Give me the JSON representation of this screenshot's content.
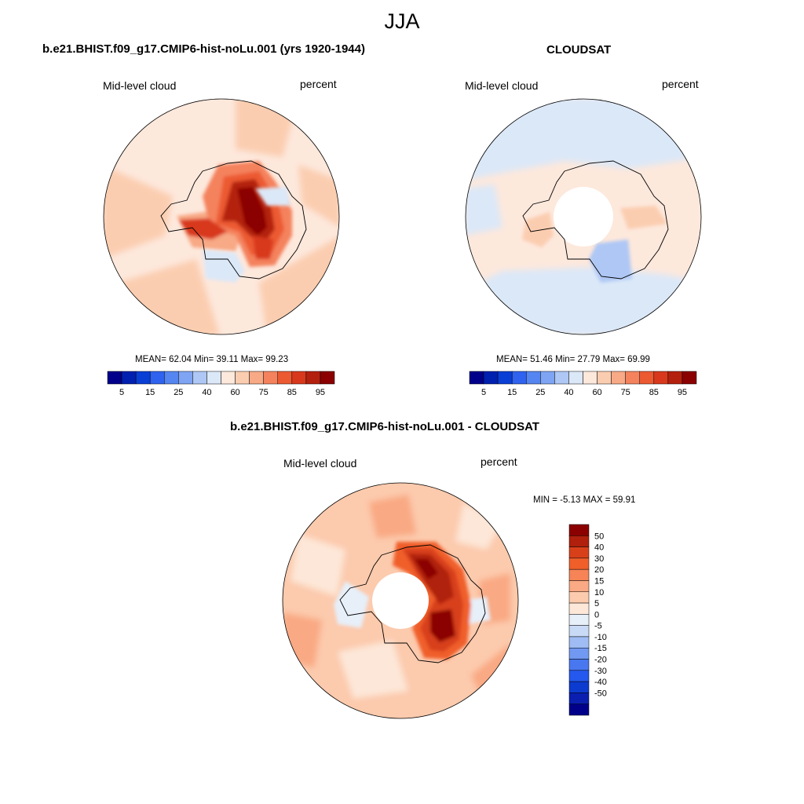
{
  "season": "JJA",
  "units": "percent",
  "variable": "Mid-level cloud",
  "panels": [
    {
      "title": "b.e21.BHIST.f09_g17.CMIP6-hist-noLu.001 (yrs 1920-1944)",
      "stats": "MEAN=  62.04  Min=  39.11  Max=  99.23"
    },
    {
      "title": "CLOUDSAT",
      "stats": "MEAN=  51.46  Min=  27.79  Max=  69.99"
    },
    {
      "title": "b.e21.BHIST.f09_g17.CMIP6-hist-noLu.001 - CLOUDSAT",
      "stats": "MIN =  -5.13 MAX =  59.91"
    }
  ],
  "colorbar_main": {
    "colors": [
      "#00008b",
      "#0020b0",
      "#0a3fd6",
      "#2f62ee",
      "#5585f0",
      "#7ea4f3",
      "#aec7f5",
      "#dbe8f8",
      "#fde8dc",
      "#fbcdb0",
      "#f8a985",
      "#f4825d",
      "#ec5a32",
      "#d8391c",
      "#b4200e",
      "#8b0000"
    ],
    "labels": [
      "5",
      "15",
      "25",
      "40",
      "60",
      "75",
      "85",
      "95"
    ]
  },
  "colorbar_diff": {
    "colors": [
      "#00008b",
      "#0a1fb0",
      "#0c3bd0",
      "#2458ee",
      "#4877f0",
      "#7199f2",
      "#9fbcf4",
      "#c9daf6",
      "#e7eff9",
      "#fde7d8",
      "#fccaad",
      "#f9a983",
      "#f68456",
      "#f05f2a",
      "#d8401a",
      "#b0200c",
      "#8b0000"
    ],
    "labels": [
      "50",
      "40",
      "30",
      "20",
      "15",
      "10",
      "5",
      "0",
      "-5",
      "-10",
      "-15",
      "-20",
      "-30",
      "-40",
      "-50"
    ]
  },
  "chart_data": [
    {
      "type": "heatmap",
      "title": "b.e21.BHIST.f09_g17.CMIP6-hist-noLu.001 (yrs 1920-1944)",
      "variable": "Mid-level cloud",
      "units": "percent",
      "projection": "south-polar-stereographic",
      "mean": 62.04,
      "min": 39.11,
      "max": 99.23,
      "levels": [
        5,
        10,
        15,
        20,
        25,
        30,
        40,
        50,
        60,
        70,
        75,
        80,
        85,
        90,
        95
      ]
    },
    {
      "type": "heatmap",
      "title": "CLOUDSAT",
      "variable": "Mid-level cloud",
      "units": "percent",
      "projection": "south-polar-stereographic",
      "mean": 51.46,
      "min": 27.79,
      "max": 69.99,
      "levels": [
        5,
        10,
        15,
        20,
        25,
        30,
        40,
        50,
        60,
        70,
        75,
        80,
        85,
        90,
        95
      ]
    },
    {
      "type": "heatmap",
      "title": "b.e21.BHIST.f09_g17.CMIP6-hist-noLu.001 - CLOUDSAT",
      "variable": "Mid-level cloud",
      "units": "percent",
      "projection": "south-polar-stereographic",
      "min": -5.13,
      "max": 59.91,
      "levels": [
        -50,
        -40,
        -30,
        -20,
        -15,
        -10,
        -5,
        0,
        5,
        10,
        15,
        20,
        30,
        40,
        50
      ]
    }
  ]
}
